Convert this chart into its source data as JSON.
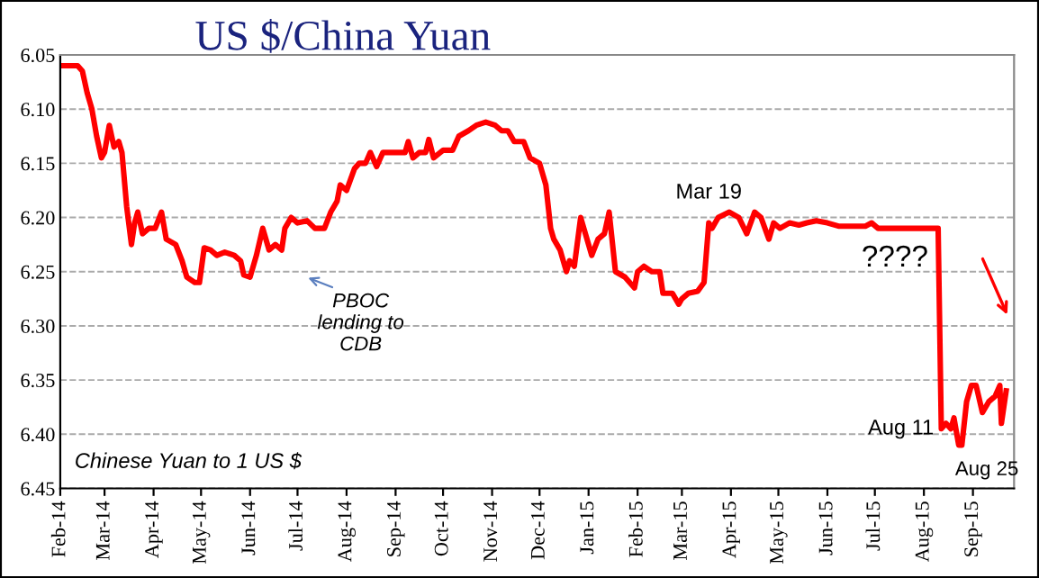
{
  "chart_data": {
    "type": "line",
    "title": "US $/China Yuan",
    "x": [
      "2014-02-01",
      "2014-02-04",
      "2014-02-12",
      "2014-02-15",
      "2014-02-18",
      "2014-02-21",
      "2014-02-24",
      "2014-02-27",
      "2014-03-01",
      "2014-03-04",
      "2014-03-07",
      "2014-03-10",
      "2014-03-12",
      "2014-03-15",
      "2014-03-18",
      "2014-03-20",
      "2014-03-22",
      "2014-03-25",
      "2014-03-29",
      "2014-04-02",
      "2014-04-06",
      "2014-04-09",
      "2014-04-15",
      "2014-04-19",
      "2014-04-22",
      "2014-04-27",
      "2014-04-30",
      "2014-05-03",
      "2014-05-07",
      "2014-05-11",
      "2014-05-16",
      "2014-05-22",
      "2014-05-26",
      "2014-05-28",
      "2014-06-01",
      "2014-06-05",
      "2014-06-09",
      "2014-06-13",
      "2014-06-17",
      "2014-06-21",
      "2014-06-23",
      "2014-06-27",
      "2014-07-01",
      "2014-07-07",
      "2014-07-12",
      "2014-07-18",
      "2014-07-22",
      "2014-07-26",
      "2014-07-28",
      "2014-08-01",
      "2014-08-06",
      "2014-08-09",
      "2014-08-13",
      "2014-08-16",
      "2014-08-20",
      "2014-08-24",
      "2014-09-01",
      "2014-09-07",
      "2014-09-09",
      "2014-09-12",
      "2014-09-16",
      "2014-09-20",
      "2014-09-22",
      "2014-09-25",
      "2014-10-01",
      "2014-10-07",
      "2014-10-11",
      "2014-10-17",
      "2014-10-22",
      "2014-10-28",
      "2014-11-03",
      "2014-11-07",
      "2014-11-11",
      "2014-11-15",
      "2014-11-21",
      "2014-11-25",
      "2014-12-01",
      "2014-12-05",
      "2014-12-08",
      "2014-12-10",
      "2014-12-14",
      "2014-12-18",
      "2014-12-20",
      "2014-12-23",
      "2014-12-27",
      "2015-01-03",
      "2015-01-07",
      "2015-01-11",
      "2015-01-14",
      "2015-01-18",
      "2015-01-24",
      "2015-01-30",
      "2015-02-01",
      "2015-02-05",
      "2015-02-10",
      "2015-02-15",
      "2015-02-17",
      "2015-02-23",
      "2015-02-27",
      "2015-03-01",
      "2015-03-05",
      "2015-03-11",
      "2015-03-15",
      "2015-03-18",
      "2015-03-20",
      "2015-03-24",
      "2015-03-31",
      "2015-04-06",
      "2015-04-11",
      "2015-04-16",
      "2015-04-20",
      "2015-04-25",
      "2015-04-28",
      "2015-05-02",
      "2015-05-08",
      "2015-05-14",
      "2015-05-19",
      "2015-05-25",
      "2015-06-01",
      "2015-06-08",
      "2015-06-15",
      "2015-06-25",
      "2015-06-29",
      "2015-07-03",
      "2015-07-18",
      "2015-08-06",
      "2015-08-10",
      "2015-08-12",
      "2015-08-15",
      "2015-08-18",
      "2015-08-20",
      "2015-08-23",
      "2015-08-25",
      "2015-08-28",
      "2015-08-31",
      "2015-09-03",
      "2015-09-07",
      "2015-09-11",
      "2015-09-15",
      "2015-09-18",
      "2015-09-19",
      "2015-09-22"
    ],
    "series": [
      {
        "color": "#ff0000",
        "values": [
          6.06,
          6.06,
          6.06,
          6.065,
          6.085,
          6.1,
          6.125,
          6.145,
          6.14,
          6.115,
          6.135,
          6.13,
          6.14,
          6.19,
          6.225,
          6.205,
          6.195,
          6.215,
          6.21,
          6.21,
          6.195,
          6.22,
          6.225,
          6.24,
          6.255,
          6.26,
          6.26,
          6.228,
          6.23,
          6.235,
          6.232,
          6.235,
          6.24,
          6.253,
          6.255,
          6.235,
          6.21,
          6.23,
          6.225,
          6.23,
          6.21,
          6.2,
          6.205,
          6.203,
          6.21,
          6.21,
          6.195,
          6.185,
          6.17,
          6.175,
          6.155,
          6.15,
          6.15,
          6.14,
          6.153,
          6.14,
          6.14,
          6.14,
          6.13,
          6.145,
          6.14,
          6.14,
          6.128,
          6.145,
          6.138,
          6.138,
          6.125,
          6.12,
          6.115,
          6.112,
          6.115,
          6.12,
          6.12,
          6.13,
          6.13,
          6.145,
          6.15,
          6.17,
          6.21,
          6.22,
          6.23,
          6.25,
          6.24,
          6.245,
          6.2,
          6.235,
          6.22,
          6.215,
          6.195,
          6.25,
          6.255,
          6.265,
          6.25,
          6.245,
          6.25,
          6.25,
          6.27,
          6.27,
          6.28,
          6.275,
          6.27,
          6.268,
          6.26,
          6.205,
          6.21,
          6.2,
          6.195,
          6.2,
          6.215,
          6.195,
          6.2,
          6.22,
          6.205,
          6.21,
          6.205,
          6.207,
          6.205,
          6.203,
          6.205,
          6.208,
          6.208,
          6.208,
          6.205,
          6.21,
          6.21,
          6.21,
          6.21,
          6.395,
          6.39,
          6.395,
          6.385,
          6.41,
          6.41,
          6.37,
          6.355,
          6.355,
          6.38,
          6.37,
          6.365,
          6.355,
          6.39,
          6.36
        ]
      }
    ],
    "xlim": [
      "2014-02-01",
      "2015-09-27"
    ],
    "xticks": [
      {
        "value": "2014-02-01",
        "label": "Feb-14"
      },
      {
        "value": "2014-03-01",
        "label": "Mar-14"
      },
      {
        "value": "2014-04-01",
        "label": "Apr-14"
      },
      {
        "value": "2014-05-01",
        "label": "May-14"
      },
      {
        "value": "2014-06-01",
        "label": "Jun-14"
      },
      {
        "value": "2014-07-01",
        "label": "Jul-14"
      },
      {
        "value": "2014-08-01",
        "label": "Aug-14"
      },
      {
        "value": "2014-09-01",
        "label": "Sep-14"
      },
      {
        "value": "2014-10-01",
        "label": "Oct-14"
      },
      {
        "value": "2014-11-01",
        "label": "Nov-14"
      },
      {
        "value": "2014-12-01",
        "label": "Dec-14"
      },
      {
        "value": "2015-01-01",
        "label": "Jan-15"
      },
      {
        "value": "2015-02-01",
        "label": "Feb-15"
      },
      {
        "value": "2015-03-01",
        "label": "Mar-15"
      },
      {
        "value": "2015-04-01",
        "label": "Apr-15"
      },
      {
        "value": "2015-05-01",
        "label": "May-15"
      },
      {
        "value": "2015-06-01",
        "label": "Jun-15"
      },
      {
        "value": "2015-07-01",
        "label": "Jul-15"
      },
      {
        "value": "2015-08-01",
        "label": "Aug-15"
      },
      {
        "value": "2015-09-01",
        "label": "Sep-15"
      }
    ],
    "ylim": [
      6.45,
      6.05
    ],
    "yticks": [
      {
        "value": 6.05,
        "label": "6.05"
      },
      {
        "value": 6.1,
        "label": "6.10"
      },
      {
        "value": 6.15,
        "label": "6.15"
      },
      {
        "value": 6.2,
        "label": "6.20"
      },
      {
        "value": 6.25,
        "label": "6.25"
      },
      {
        "value": 6.3,
        "label": "6.30"
      },
      {
        "value": 6.35,
        "label": "6.35"
      },
      {
        "value": 6.4,
        "label": "6.40"
      },
      {
        "value": 6.45,
        "label": "6.45"
      }
    ],
    "grid": "y",
    "line_style": "solid",
    "annotations": [
      "PBOC\nlending to\nCDB",
      {
        "text": "Mar 19",
        "x": "2015-03-18",
        "y": 6.205
      },
      "????",
      {
        "text": "Aug 11",
        "x": "2015-08-12",
        "y": 6.395
      },
      {
        "text": "Aug 25",
        "x": "2015-08-25",
        "y": 6.41
      },
      "Chinese Yuan to 1 US $"
    ]
  }
}
